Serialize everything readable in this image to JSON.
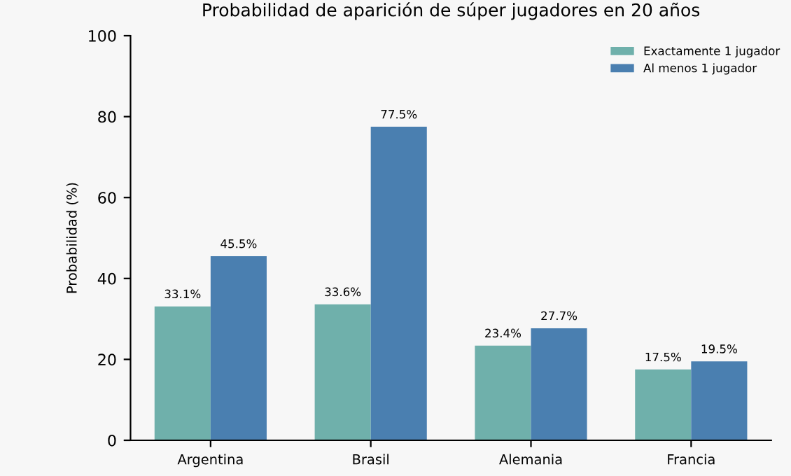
{
  "chart_data": {
    "type": "bar",
    "title": "Probabilidad de aparición de súper jugadores en 20 años",
    "ylabel": "Probabilidad (%)",
    "categories": [
      "Argentina",
      "Brasil",
      "Alemania",
      "Francia"
    ],
    "series": [
      {
        "name": "Exactamente 1 jugador",
        "color": "#6fb0ab",
        "values": [
          33.1,
          33.6,
          23.4,
          17.5
        ],
        "value_labels": [
          "33.1%",
          "33.6%",
          "23.4%",
          "17.5%"
        ]
      },
      {
        "name": "Al menos 1 jugador",
        "color": "#4a7fb0",
        "values": [
          45.5,
          77.5,
          27.7,
          19.5
        ],
        "value_labels": [
          "45.5%",
          "77.5%",
          "27.7%",
          "19.5%"
        ]
      }
    ],
    "ylim": [
      0,
      100
    ],
    "yticks": [
      0,
      20,
      40,
      60,
      80,
      100
    ],
    "grid": false,
    "legend": "top right"
  }
}
